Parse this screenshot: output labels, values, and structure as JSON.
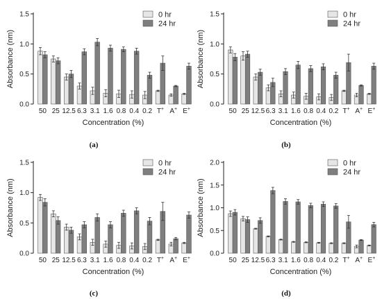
{
  "colors": {
    "hr0": "#e6e6e6",
    "hr24": "#7f7f7f",
    "axis": "#222222",
    "edge": "#555555"
  },
  "chart_data": [
    {
      "panel": "(a)",
      "type": "bar",
      "xlabel": "Concentration (%)",
      "ylabel": "Absorbance (nm)",
      "ylim": [
        0,
        1.5
      ],
      "yticks": [
        "0.0",
        "0.5",
        "1.0",
        "1.5"
      ],
      "ytick_values": [
        0,
        0.5,
        1.0,
        1.5
      ],
      "categories": [
        "50",
        "25",
        "12.5",
        "6.3",
        "3.1",
        "1.6",
        "0.8",
        "0.4",
        "0.2",
        "T",
        "A",
        "E"
      ],
      "category_superscripts": [
        "",
        "",
        "",
        "",
        "",
        "",
        "",
        "",
        "",
        "+",
        "+",
        "+"
      ],
      "legend_position": "top-right",
      "series": [
        {
          "name": "0 hr",
          "values": [
            0.88,
            0.75,
            0.45,
            0.3,
            0.22,
            0.18,
            0.17,
            0.16,
            0.15,
            0.22,
            0.15,
            0.17
          ],
          "errors": [
            0.06,
            0.05,
            0.05,
            0.05,
            0.06,
            0.06,
            0.06,
            0.06,
            0.06,
            0.01,
            0.02,
            0.01
          ]
        },
        {
          "name": "24 hr",
          "values": [
            0.82,
            0.72,
            0.5,
            0.87,
            1.03,
            0.93,
            0.91,
            0.88,
            0.48,
            0.68,
            0.3,
            0.63
          ],
          "errors": [
            0.05,
            0.05,
            0.06,
            0.05,
            0.06,
            0.05,
            0.04,
            0.05,
            0.05,
            0.12,
            0.01,
            0.05
          ]
        }
      ]
    },
    {
      "panel": "(b)",
      "type": "bar",
      "xlabel": "Concentration (%)",
      "ylabel": "Absorbance (nm)",
      "ylim": [
        0,
        1.5
      ],
      "yticks": [
        "0.0",
        "0.5",
        "1.0",
        "1.5"
      ],
      "ytick_values": [
        0,
        0.5,
        1.0,
        1.5
      ],
      "categories": [
        "50",
        "25",
        "12.5",
        "6.3",
        "3.1",
        "1.6",
        "0.8",
        "0.4",
        "0.2",
        "T",
        "A",
        "E"
      ],
      "category_superscripts": [
        "",
        "",
        "",
        "",
        "",
        "",
        "",
        "",
        "",
        "+",
        "+",
        "+"
      ],
      "legend_position": "top-right",
      "series": [
        {
          "name": "0 hr",
          "values": [
            0.9,
            0.8,
            0.45,
            0.27,
            0.17,
            0.15,
            0.13,
            0.12,
            0.11,
            0.22,
            0.15,
            0.17
          ],
          "errors": [
            0.05,
            0.07,
            0.05,
            0.05,
            0.05,
            0.05,
            0.05,
            0.05,
            0.05,
            0.01,
            0.03,
            0.01
          ]
        },
        {
          "name": "24 hr",
          "values": [
            0.78,
            0.83,
            0.53,
            0.36,
            0.54,
            0.65,
            0.59,
            0.62,
            0.48,
            0.69,
            0.31,
            0.63
          ],
          "errors": [
            0.06,
            0.05,
            0.05,
            0.07,
            0.05,
            0.06,
            0.05,
            0.05,
            0.05,
            0.14,
            0.01,
            0.05
          ]
        }
      ]
    },
    {
      "panel": "(c)",
      "type": "bar",
      "xlabel": "Concentration (%)",
      "ylabel": "Absorbance (nm)",
      "ylim": [
        0,
        1.5
      ],
      "yticks": [
        "0.0",
        "0.5",
        "1.0",
        "1.5"
      ],
      "ytick_values": [
        0,
        0.5,
        1.0,
        1.5
      ],
      "categories": [
        "50",
        "25",
        "12.5",
        "6.3",
        "3.1",
        "1.6",
        "0.8",
        "0.4",
        "0.2",
        "T",
        "A",
        "E"
      ],
      "category_superscripts": [
        "",
        "",
        "",
        "",
        "",
        "",
        "",
        "",
        "",
        "+",
        "+",
        "+"
      ],
      "legend_position": "top-right",
      "series": [
        {
          "name": "0 hr",
          "values": [
            0.92,
            0.65,
            0.43,
            0.27,
            0.18,
            0.15,
            0.13,
            0.12,
            0.11,
            0.22,
            0.15,
            0.17
          ],
          "errors": [
            0.05,
            0.05,
            0.05,
            0.05,
            0.05,
            0.05,
            0.05,
            0.05,
            0.05,
            0.01,
            0.03,
            0.01
          ]
        },
        {
          "name": "24 hr",
          "values": [
            0.84,
            0.54,
            0.38,
            0.47,
            0.59,
            0.47,
            0.66,
            0.7,
            0.53,
            0.69,
            0.24,
            0.63
          ],
          "errors": [
            0.06,
            0.06,
            0.05,
            0.05,
            0.06,
            0.05,
            0.05,
            0.05,
            0.06,
            0.15,
            0.02,
            0.05
          ]
        }
      ]
    },
    {
      "panel": "(d)",
      "type": "bar",
      "xlabel": "Concentration (%)",
      "ylabel": "Absorbance (nm)",
      "ylim": [
        0,
        2.0
      ],
      "yticks": [
        "0.0",
        "0.5",
        "1.0",
        "1.5",
        "2.0"
      ],
      "ytick_values": [
        0,
        0.5,
        1.0,
        1.5,
        2.0
      ],
      "categories": [
        "50",
        "25",
        "12.5",
        "6.3",
        "3.1",
        "1.6",
        "0.8",
        "0.4",
        "0.2",
        "T",
        "A",
        "E"
      ],
      "category_superscripts": [
        "",
        "",
        "",
        "",
        "",
        "",
        "",
        "",
        "",
        "+",
        "+",
        "+"
      ],
      "legend_position": "top-right",
      "series": [
        {
          "name": "0 hr",
          "values": [
            0.87,
            0.76,
            0.54,
            0.37,
            0.3,
            0.25,
            0.24,
            0.23,
            0.22,
            0.22,
            0.15,
            0.17
          ],
          "errors": [
            0.06,
            0.05,
            0.01,
            0.01,
            0.01,
            0.01,
            0.01,
            0.01,
            0.01,
            0.01,
            0.03,
            0.01
          ]
        },
        {
          "name": "24 hr",
          "values": [
            0.9,
            0.74,
            0.72,
            1.38,
            1.14,
            1.13,
            1.05,
            1.08,
            1.04,
            0.69,
            0.29,
            0.63
          ],
          "errors": [
            0.06,
            0.06,
            0.06,
            0.07,
            0.06,
            0.05,
            0.05,
            0.05,
            0.05,
            0.14,
            0.01,
            0.05
          ]
        }
      ]
    }
  ]
}
